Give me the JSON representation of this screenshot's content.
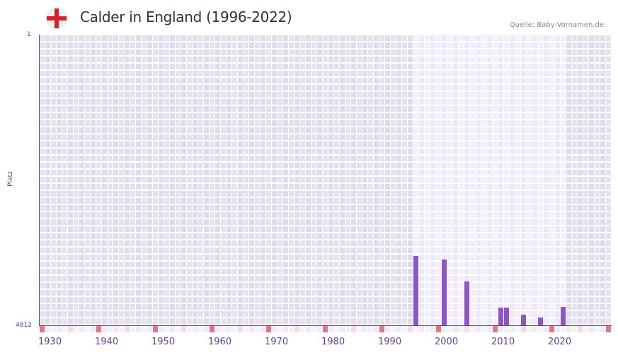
{
  "header": {
    "title": "Calder in England (1996-2022)",
    "source": "Quelle: Baby-Vornamen.de",
    "flag_icon": "england-flag-icon"
  },
  "colors": {
    "bar": "#8e55c7",
    "axis": "#6a3d9a",
    "decade_marker": "#e57580",
    "halfdecade_marker": "#f7d9e2",
    "bg_outside": "#e3dfee",
    "bg_inside": "#efeafa"
  },
  "chart_data": {
    "type": "bar",
    "title": "Calder in England (1996-2022)",
    "xlabel": "",
    "ylabel": "Platz",
    "y_inverted": true,
    "ylim": [
      1,
      4812
    ],
    "xlim": [
      1930,
      2030
    ],
    "highlight_range": [
      1996,
      2022
    ],
    "x_ticks": [
      "1930",
      "1940",
      "1950",
      "1960",
      "1970",
      "1980",
      "1990",
      "2000",
      "2010",
      "2020"
    ],
    "y_ticks": [
      "1",
      "4812"
    ],
    "categories": [
      1996,
      2001,
      2005,
      2011,
      2012,
      2015,
      2018,
      2022
    ],
    "values": [
      3665,
      3723,
      4086,
      4519,
      4519,
      4636,
      4683,
      4508
    ],
    "grid": true,
    "legend": null
  }
}
